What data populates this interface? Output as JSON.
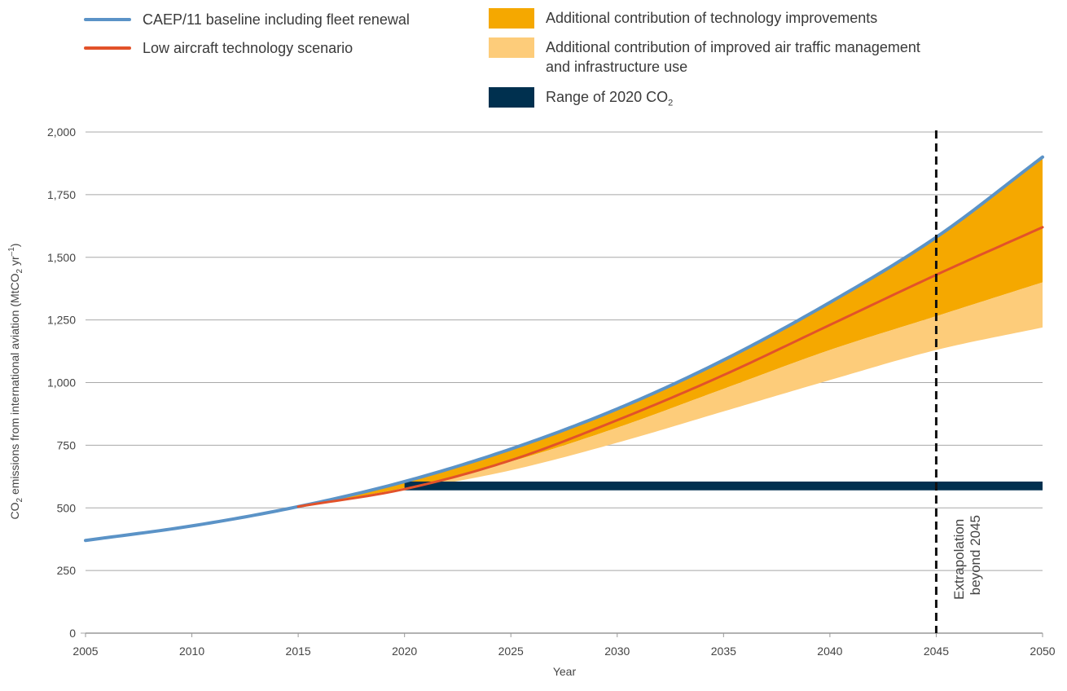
{
  "legend": {
    "baseline": "CAEP/11 baseline including fleet renewal",
    "low_tech": "Low aircraft technology scenario",
    "tech": "Additional contribution of technology improvements",
    "atm_line1": "Additional contribution of improved air traffic management",
    "atm_line2": "and infrastructure use",
    "range_prefix": "Range of 2020 CO",
    "range_sub": "2"
  },
  "axis": {
    "y_prefix": "CO",
    "y_sub1": "2",
    "y_mid": " emissions from international aviation (MtCO",
    "y_sub2": "2",
    "y_mid2": " yr",
    "y_sup": "–1",
    "y_end": ")",
    "x_title": "Year"
  },
  "annotation": {
    "line1": "Extrapolation",
    "line2": "beyond 2045"
  },
  "colors": {
    "baseline": "#5b93c7",
    "low_tech": "#e2522a",
    "tech": "#f5a800",
    "atm": "#fdcc7a",
    "range": "#00304f",
    "grid": "#a8a8a8"
  },
  "chart_data": {
    "type": "area",
    "x": [
      2005,
      2010,
      2015,
      2020,
      2025,
      2030,
      2035,
      2040,
      2045,
      2050
    ],
    "xlim": [
      2005,
      2050
    ],
    "ylim": [
      0,
      2000
    ],
    "yticks": [
      0,
      250,
      500,
      750,
      1000,
      1250,
      1500,
      1750,
      2000
    ],
    "yticklabels": [
      "0",
      "250",
      "500",
      "750",
      "1,000",
      "1,250",
      "1,500",
      "1,750",
      "2,000"
    ],
    "xticks": [
      2005,
      2010,
      2015,
      2020,
      2025,
      2030,
      2035,
      2040,
      2045,
      2050
    ],
    "xlabel": "Year",
    "ylabel": "CO2 emissions from international aviation (MtCO2 yr–1)",
    "grid": true,
    "series": [
      {
        "name": "CAEP/11 baseline including fleet renewal",
        "kind": "line",
        "values": [
          370,
          428,
          505,
          605,
          735,
          895,
          1090,
          1320,
          1580,
          1900
        ]
      },
      {
        "name": "Low aircraft technology scenario",
        "kind": "line",
        "x": [
          2015,
          2020,
          2025,
          2030,
          2035,
          2040,
          2045,
          2050
        ],
        "values": [
          505,
          575,
          690,
          850,
          1030,
          1230,
          1430,
          1620
        ]
      },
      {
        "name": "Additional contribution of technology improvements",
        "kind": "band",
        "x": [
          2015,
          2020,
          2025,
          2030,
          2035,
          2040,
          2045,
          2050
        ],
        "lower": [
          505,
          580,
          685,
          820,
          975,
          1130,
          1265,
          1400
        ],
        "upper": [
          505,
          605,
          735,
          895,
          1090,
          1320,
          1580,
          1900
        ]
      },
      {
        "name": "Additional contribution of improved air traffic management and infrastructure use",
        "kind": "band",
        "x": [
          2015,
          2020,
          2025,
          2030,
          2035,
          2040,
          2045,
          2050
        ],
        "lower": [
          505,
          570,
          650,
          760,
          885,
          1010,
          1130,
          1220
        ],
        "upper": [
          505,
          580,
          685,
          820,
          975,
          1130,
          1265,
          1400
        ]
      },
      {
        "name": "Range of 2020 CO2",
        "kind": "range",
        "x": [
          2020,
          2050
        ],
        "lower": 570,
        "upper": 605
      }
    ],
    "vline": {
      "x": 2045,
      "style": "dashed"
    }
  }
}
